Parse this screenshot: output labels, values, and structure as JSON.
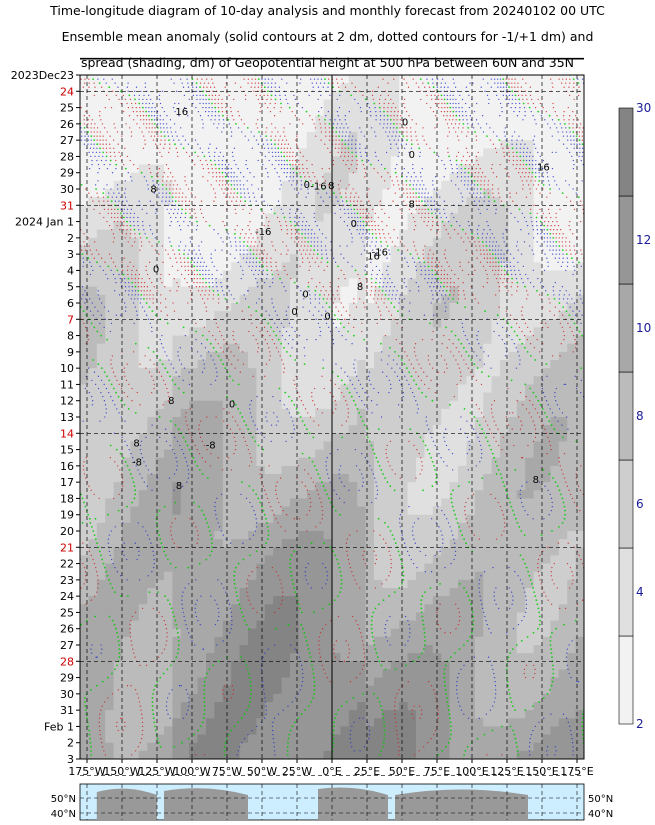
{
  "title": {
    "line1": "Time-longitude diagram of 10-day analysis and monthly forecast from 20240102 00 UTC",
    "line2": "Ensemble mean anomaly (solid contours at 2 dm, dotted contours for -1/+1 dm) and",
    "line3": "spread (shading, dm) of Geopotential height at 500 hPa between 60N and 35N"
  },
  "chart_data": {
    "type": "heatmap",
    "y_axis": {
      "labels": [
        {
          "text": "2023Dec23",
          "color": "#000000"
        },
        {
          "text": "24",
          "color": "#cc0000"
        },
        {
          "text": "25",
          "color": "#000000"
        },
        {
          "text": "26",
          "color": "#000000"
        },
        {
          "text": "27",
          "color": "#000000"
        },
        {
          "text": "28",
          "color": "#000000"
        },
        {
          "text": "29",
          "color": "#000000"
        },
        {
          "text": "30",
          "color": "#000000"
        },
        {
          "text": "31",
          "color": "#cc0000"
        },
        {
          "text": "2024 Jan 1",
          "color": "#000000"
        },
        {
          "text": "2",
          "color": "#000000"
        },
        {
          "text": "3",
          "color": "#000000"
        },
        {
          "text": "4",
          "color": "#000000"
        },
        {
          "text": "5",
          "color": "#000000"
        },
        {
          "text": "6",
          "color": "#000000"
        },
        {
          "text": "7",
          "color": "#cc0000"
        },
        {
          "text": "8",
          "color": "#000000"
        },
        {
          "text": "9",
          "color": "#000000"
        },
        {
          "text": "10",
          "color": "#000000"
        },
        {
          "text": "11",
          "color": "#000000"
        },
        {
          "text": "12",
          "color": "#000000"
        },
        {
          "text": "13",
          "color": "#000000"
        },
        {
          "text": "14",
          "color": "#cc0000"
        },
        {
          "text": "15",
          "color": "#000000"
        },
        {
          "text": "16",
          "color": "#000000"
        },
        {
          "text": "17",
          "color": "#000000"
        },
        {
          "text": "18",
          "color": "#000000"
        },
        {
          "text": "19",
          "color": "#000000"
        },
        {
          "text": "20",
          "color": "#000000"
        },
        {
          "text": "21",
          "color": "#cc0000"
        },
        {
          "text": "22",
          "color": "#000000"
        },
        {
          "text": "23",
          "color": "#000000"
        },
        {
          "text": "24",
          "color": "#000000"
        },
        {
          "text": "25",
          "color": "#000000"
        },
        {
          "text": "26",
          "color": "#000000"
        },
        {
          "text": "27",
          "color": "#000000"
        },
        {
          "text": "28",
          "color": "#cc0000"
        },
        {
          "text": "29",
          "color": "#000000"
        },
        {
          "text": "30",
          "color": "#000000"
        },
        {
          "text": "31",
          "color": "#000000"
        },
        {
          "text": "Feb 1",
          "color": "#000000"
        },
        {
          "text": "2",
          "color": "#000000"
        },
        {
          "text": "3",
          "color": "#000000"
        }
      ],
      "analysis_forecast_boundary": "2024 Jan 2"
    },
    "x_axis": {
      "ticks": [
        "175°W",
        "150°W",
        "125°W",
        "100°W",
        "75°W",
        "50°W",
        "25°W",
        "0°E",
        "25°E",
        "50°E",
        "75°E",
        "100°E",
        "125°E",
        "150°E",
        "175°E"
      ],
      "range_deg": [
        -180,
        180
      ]
    },
    "colorbar": {
      "label_bottom": "2",
      "labels": [
        "4",
        "6",
        "8",
        "10",
        "12"
      ],
      "label_top": "30",
      "colors": [
        "#f2f2f2",
        "#e0e0e0",
        "#cecece",
        "#bbbbbb",
        "#a8a8a8",
        "#969696",
        "#848484"
      ]
    },
    "contour_labels": [
      "0",
      "8",
      "0",
      "8",
      "16",
      "0",
      "0",
      "8",
      "0",
      "8",
      "16",
      "8",
      "0",
      "16",
      "0",
      "8",
      "8",
      "0",
      "0",
      "8",
      "-16",
      "-8",
      "-8",
      "-16",
      "-16"
    ],
    "contour_colors": {
      "positive": "#cc2222",
      "negative": "#2233cc",
      "zero": "#00cc00"
    },
    "map_strip": {
      "lat_labels": [
        "50°N",
        "40°N"
      ],
      "ocean_color": "#cdeeff",
      "land_color": "#999999"
    },
    "grid": true
  }
}
